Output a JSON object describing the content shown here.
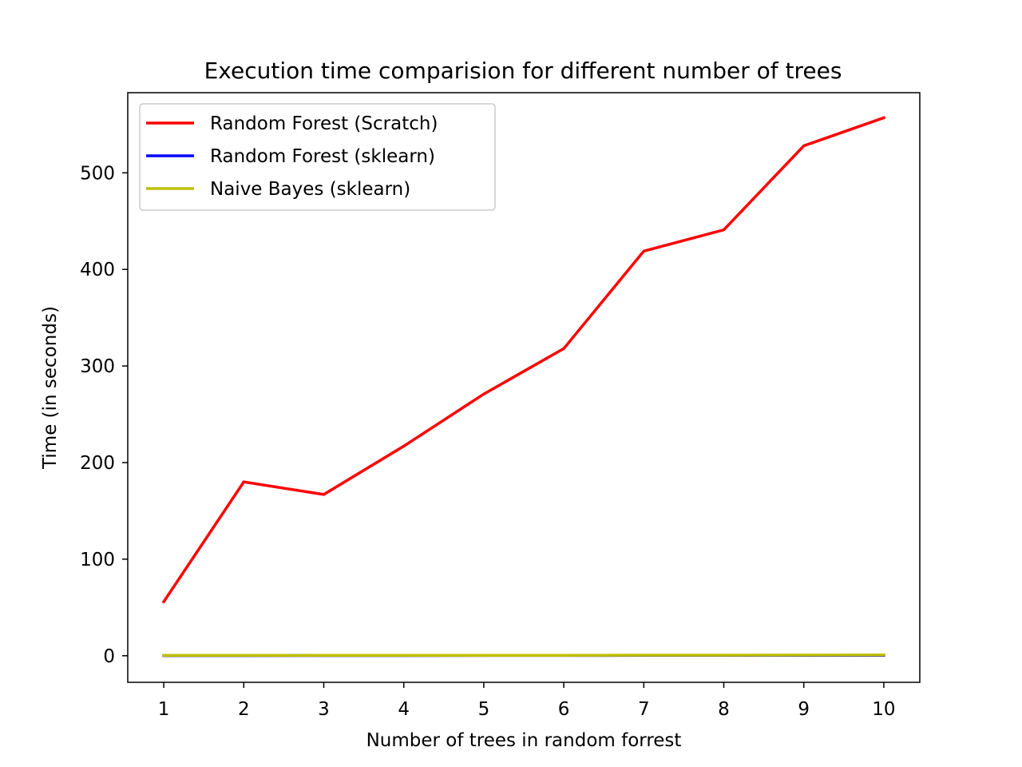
{
  "chart_data": {
    "type": "line",
    "title": "Execution time comparision for different number of trees",
    "xlabel": "Number of trees in random forrest",
    "ylabel": "Time (in seconds)",
    "x": [
      1,
      2,
      3,
      4,
      5,
      6,
      7,
      8,
      9,
      10
    ],
    "xlim": [
      0.55,
      10.45
    ],
    "ylim": [
      -27.5,
      583.0
    ],
    "xticks": [
      1,
      2,
      3,
      4,
      5,
      6,
      7,
      8,
      9,
      10
    ],
    "yticks": [
      0,
      100,
      200,
      300,
      400,
      500
    ],
    "grid": false,
    "legend_position": "upper-left",
    "series": [
      {
        "name": "Random Forest (Scratch)",
        "color": "#ff0000",
        "values": [
          56,
          180,
          167,
          217,
          271,
          318,
          419,
          441,
          528,
          557
        ]
      },
      {
        "name": "Random Forest (sklearn)",
        "color": "#0000ff",
        "values": [
          0.1,
          0.1,
          0.2,
          0.2,
          0.3,
          0.3,
          0.4,
          0.4,
          0.5,
          0.5
        ]
      },
      {
        "name": "Naive Bayes (sklearn)",
        "color": "#bfbf00",
        "values": [
          0.3,
          0.3,
          0.4,
          0.4,
          0.5,
          0.5,
          0.6,
          0.6,
          0.7,
          0.8
        ]
      }
    ]
  }
}
